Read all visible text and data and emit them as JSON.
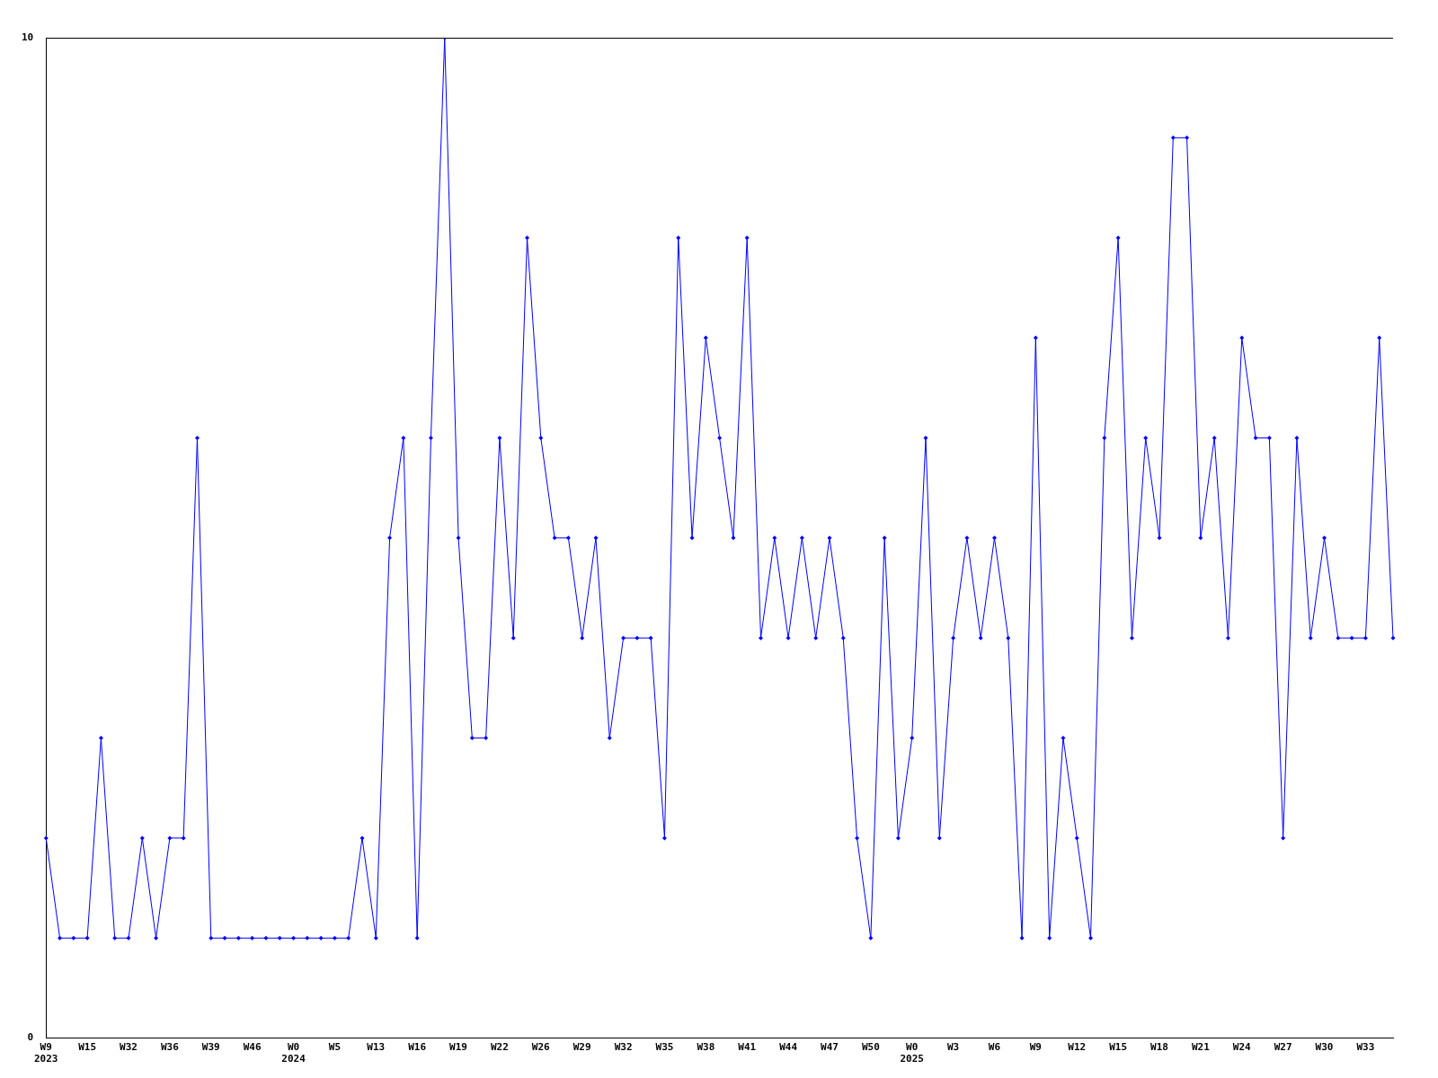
{
  "chart_data": {
    "type": "line",
    "categories": [
      "W9\n2023",
      null,
      null,
      "W15",
      null,
      null,
      "W32",
      null,
      null,
      "W36",
      null,
      null,
      "W39",
      null,
      null,
      "W46",
      null,
      null,
      "W0\n2024",
      null,
      null,
      "W5",
      null,
      null,
      "W13",
      null,
      null,
      "W16",
      null,
      null,
      "W19",
      null,
      null,
      "W22",
      null,
      null,
      "W26",
      null,
      null,
      "W29",
      null,
      null,
      "W32",
      null,
      null,
      "W35",
      null,
      null,
      "W38",
      null,
      null,
      "W41",
      null,
      null,
      "W44",
      null,
      null,
      "W47",
      null,
      null,
      "W50",
      null,
      null,
      "W0\n2025",
      null,
      null,
      "W3",
      null,
      null,
      "W6",
      null,
      null,
      "W9",
      null,
      null,
      "W12",
      null,
      null,
      "W15",
      null,
      null,
      "W18",
      null,
      null,
      "W21",
      null,
      null,
      "W24",
      null,
      null,
      "W27",
      null,
      null,
      "W30",
      null,
      null,
      "W33",
      null,
      null
    ],
    "series": [
      {
        "color": "#0000ff",
        "values": [
          2,
          1,
          1,
          1,
          3,
          1,
          1,
          2,
          1,
          2,
          2,
          6,
          1,
          1,
          1,
          1,
          1,
          1,
          1,
          1,
          1,
          1,
          1,
          2,
          1,
          5,
          6,
          1,
          6,
          10,
          5,
          3,
          3,
          6,
          4,
          8,
          6,
          5,
          5,
          4,
          5,
          3,
          4,
          4,
          4,
          2,
          8,
          5,
          7,
          6,
          5,
          8,
          4,
          5,
          4,
          5,
          4,
          5,
          4,
          2,
          1,
          5,
          2,
          3,
          6,
          2,
          4,
          5,
          4,
          5,
          4,
          1,
          7,
          1,
          3,
          2,
          1,
          6,
          8,
          4,
          6,
          5,
          9,
          9,
          5,
          6,
          4,
          7,
          6,
          6,
          2,
          6,
          4,
          5,
          4,
          4,
          4,
          7,
          4
        ]
      }
    ],
    "ylim": [
      0,
      10
    ],
    "yticks": [
      0,
      10
    ],
    "legend": false,
    "marker": "diamond",
    "line_style": "solid"
  }
}
